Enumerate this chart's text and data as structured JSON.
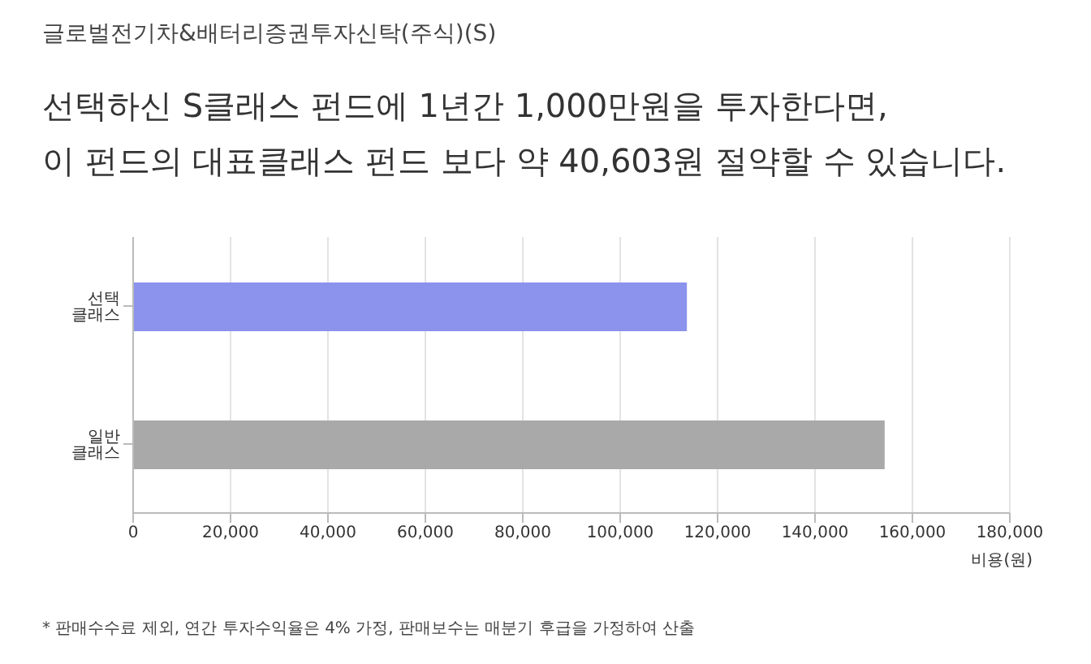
{
  "chart_data": {
    "type": "bar",
    "orientation": "horizontal",
    "title": "글로벌전기차&배터리증권투자신탁(주식)(S)",
    "subtitle": "선택하신 S클래스 펀드에 1년간 1,000만원을 투자한다면,\n이 펀드의 대표클래스 펀드 보다 약 40,603원 절약할 수 있습니다.",
    "categories": [
      "선택 클래스",
      "일반 클래스"
    ],
    "values": [
      113700,
      154300
    ],
    "colors": [
      "#8b93ec",
      "#a9a9a9"
    ],
    "xlim": [
      0,
      180000
    ],
    "xticks": [
      {
        "value": 0,
        "label": "0"
      },
      {
        "value": 20000,
        "label": "20,000"
      },
      {
        "value": 40000,
        "label": "40,000"
      },
      {
        "value": 60000,
        "label": "60,000"
      },
      {
        "value": 80000,
        "label": "80,000"
      },
      {
        "value": 100000,
        "label": "100,000"
      },
      {
        "value": 120000,
        "label": "120,000"
      },
      {
        "value": 140000,
        "label": "140,000"
      },
      {
        "value": 160000,
        "label": "160,000"
      },
      {
        "value": 180000,
        "label": "180,000"
      }
    ],
    "xlabel": "비용(원)",
    "grid": "x",
    "annotations": [
      "* 판매수수료 제외, 연간 투자수익율은 4% 가정, 판매보수는 매분기 후급을 가정하여 산출"
    ]
  }
}
